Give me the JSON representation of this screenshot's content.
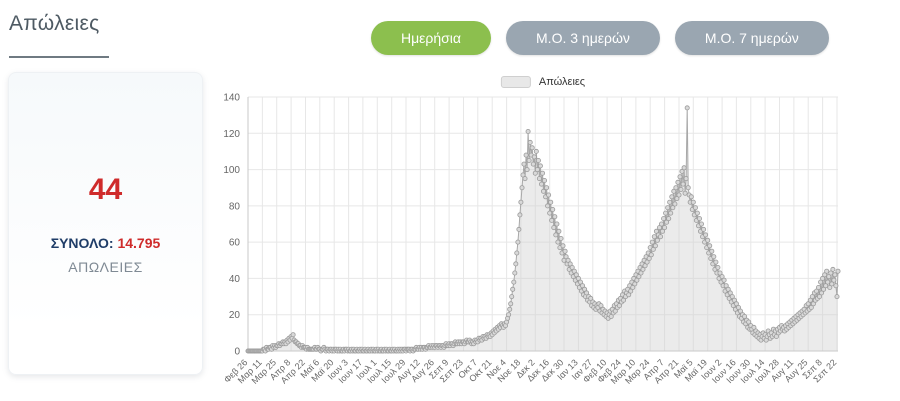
{
  "header": {
    "title": "Απώλειες"
  },
  "toolbar": {
    "buttons": [
      {
        "label": "Ημερήσια",
        "active": true
      },
      {
        "label": "Μ.Ο. 3 ημερών",
        "active": false
      },
      {
        "label": "Μ.Ο. 7 ημερών",
        "active": false
      }
    ],
    "active_color": "#8cbf4e",
    "inactive_color": "#9aa6b1"
  },
  "summary_card": {
    "today_value": "44",
    "total_label": "ΣΥΝΟΛΟ:",
    "total_value": "14.795",
    "caption": "ΑΠΩΛΕΙΕΣ",
    "value_color": "#cf2b2b",
    "label_color": "#1f3d68"
  },
  "chart_data": {
    "type": "area",
    "title": "",
    "legend": "Απώλειες",
    "legend_position": "top-center",
    "grid": true,
    "ylim": [
      0,
      140
    ],
    "y_ticks": [
      0,
      20,
      40,
      60,
      80,
      100,
      120,
      140
    ],
    "tick_interval_days": 14,
    "tick_labels": [
      "Φεβ 26",
      "Μαρ 11",
      "Μαρ 25",
      "Απρ 8",
      "Απρ 22",
      "Μαϊ 6",
      "Μαϊ 20",
      "Ιουν 3",
      "Ιουν 17",
      "Ιουλ 1",
      "Ιουλ 15",
      "Ιουλ 29",
      "Αυγ 12",
      "Αυγ 26",
      "Σεπ 9",
      "Σεπ 23",
      "Οκτ 7",
      "Οκτ 21",
      "Νοε 4",
      "Νοε 18",
      "Δεκ 2",
      "Δεκ 16",
      "Δεκ 30",
      "Ιαν 13",
      "Ιαν 27",
      "Φεβ 10",
      "Φεβ 24",
      "Μαρ 10",
      "Μαρ 24",
      "Απρ 7",
      "Απρ 21",
      "Μαϊ 5",
      "Μαϊ 19",
      "Ιουν 2",
      "Ιουν 16",
      "Ιουν 30",
      "Ιουλ 14",
      "Ιουλ 28",
      "Αυγ 11",
      "Αυγ 25",
      "Σεπ 8",
      "Σεπ 22"
    ],
    "values": [
      0,
      0,
      0,
      0,
      0,
      0,
      0,
      0,
      0,
      0,
      0,
      0,
      0,
      0,
      0,
      1,
      1,
      0,
      2,
      1,
      1,
      2,
      2,
      1,
      3,
      2,
      3,
      2,
      3,
      3,
      4,
      3,
      4,
      4,
      5,
      4,
      5,
      4,
      6,
      5,
      7,
      6,
      8,
      7,
      9,
      6,
      5,
      5,
      4,
      4,
      3,
      3,
      2,
      3,
      2,
      2,
      2,
      1,
      2,
      1,
      1,
      1,
      1,
      1,
      1,
      2,
      1,
      1,
      2,
      1,
      1,
      0,
      1,
      1,
      2,
      1,
      0,
      1,
      1,
      0,
      1,
      1,
      0,
      1,
      0,
      1,
      1,
      0,
      1,
      0,
      1,
      0,
      0,
      1,
      0,
      1,
      1,
      0,
      1,
      0,
      0,
      1,
      0,
      1,
      0,
      0,
      1,
      0,
      0,
      1,
      0,
      1,
      0,
      0,
      1,
      0,
      0,
      1,
      0,
      0,
      1,
      0,
      1,
      0,
      0,
      1,
      0,
      1,
      0,
      0,
      1,
      0,
      0,
      1,
      0,
      1,
      0,
      0,
      1,
      0,
      0,
      1,
      0,
      1,
      0,
      0,
      1,
      0,
      1,
      0,
      1,
      0,
      1,
      1,
      0,
      1,
      1,
      1,
      0,
      1,
      1,
      0,
      1,
      1,
      2,
      1,
      1,
      2,
      1,
      2,
      1,
      2,
      2,
      1,
      2,
      2,
      3,
      2,
      2,
      3,
      2,
      3,
      2,
      3,
      3,
      2,
      3,
      3,
      2,
      3,
      3,
      2,
      3,
      4,
      3,
      3,
      4,
      3,
      4,
      4,
      3,
      4,
      5,
      4,
      4,
      5,
      4,
      5,
      4,
      5,
      5,
      4,
      5,
      6,
      5,
      5,
      6,
      5,
      4,
      5,
      4,
      6,
      5,
      6,
      5,
      7,
      6,
      7,
      6,
      8,
      7,
      8,
      7,
      9,
      8,
      9,
      8,
      10,
      9,
      11,
      10,
      12,
      11,
      13,
      12,
      14,
      13,
      15,
      14,
      13,
      15,
      14,
      16,
      18,
      20,
      23,
      26,
      30,
      34,
      38,
      43,
      48,
      54,
      60,
      67,
      75,
      82,
      90,
      97,
      103,
      95,
      108,
      100,
      121,
      105,
      115,
      108,
      112,
      103,
      107,
      98,
      110,
      100,
      105,
      95,
      102,
      92,
      98,
      88,
      94,
      85,
      90,
      80,
      86,
      76,
      82,
      72,
      78,
      68,
      74,
      64,
      70,
      60,
      66,
      57,
      62,
      54,
      58,
      50,
      55,
      52,
      48,
      50,
      45,
      48,
      43,
      46,
      41,
      44,
      39,
      42,
      37,
      40,
      35,
      38,
      33,
      36,
      31,
      34,
      30,
      32,
      28,
      30,
      27,
      29,
      25,
      27,
      24,
      26,
      23,
      25,
      24,
      26,
      22,
      25,
      21,
      23,
      20,
      22,
      19,
      21,
      18,
      20,
      22,
      19,
      23,
      21,
      25,
      22,
      26,
      24,
      28,
      25,
      29,
      27,
      31,
      28,
      33,
      30,
      32,
      34,
      31,
      36,
      33,
      38,
      35,
      40,
      37,
      42,
      39,
      44,
      41,
      46,
      43,
      48,
      45,
      50,
      47,
      52,
      49,
      54,
      51,
      57,
      53,
      60,
      56,
      63,
      58,
      66,
      61,
      64,
      68,
      63,
      70,
      66,
      73,
      68,
      76,
      71,
      79,
      73,
      82,
      76,
      85,
      79,
      88,
      81,
      90,
      84,
      93,
      86,
      96,
      89,
      99,
      92,
      101,
      87,
      95,
      134,
      90,
      86,
      82,
      85,
      78,
      82,
      75,
      79,
      72,
      76,
      69,
      73,
      66,
      70,
      63,
      67,
      60,
      64,
      57,
      61,
      54,
      58,
      51,
      55,
      48,
      52,
      45,
      49,
      43,
      46,
      40,
      43,
      38,
      41,
      36,
      39,
      33,
      36,
      31,
      34,
      29,
      32,
      27,
      30,
      25,
      28,
      23,
      26,
      21,
      24,
      19,
      22,
      18,
      20,
      16,
      19,
      15,
      17,
      13,
      16,
      12,
      14,
      12,
      10,
      13,
      9,
      11,
      8,
      10,
      7,
      9,
      6,
      8,
      10,
      7,
      9,
      6,
      8,
      11,
      9,
      7,
      10,
      8,
      12,
      9,
      11,
      8,
      12,
      10,
      13,
      11,
      14,
      12,
      13,
      11,
      14,
      12,
      15,
      13,
      16,
      14,
      17,
      15,
      18,
      16,
      19,
      17,
      20,
      18,
      21,
      19,
      22,
      20,
      23,
      21,
      25,
      22,
      26,
      23,
      28,
      24,
      30,
      26,
      32,
      28,
      33,
      29,
      35,
      30,
      38,
      32,
      40,
      34,
      42,
      36,
      44,
      38,
      41,
      35,
      43,
      37,
      45,
      39,
      42,
      36,
      30,
      44
    ],
    "colors": {
      "grid": "#e7e7e7",
      "axis_line": "#c9c9c9",
      "axis_text": "#666666",
      "line": "#a8a8a8",
      "fill": "rgba(208,208,208,0.42)",
      "marker_fill": "#d9d9d9",
      "marker_stroke": "#9b9b9b"
    }
  }
}
